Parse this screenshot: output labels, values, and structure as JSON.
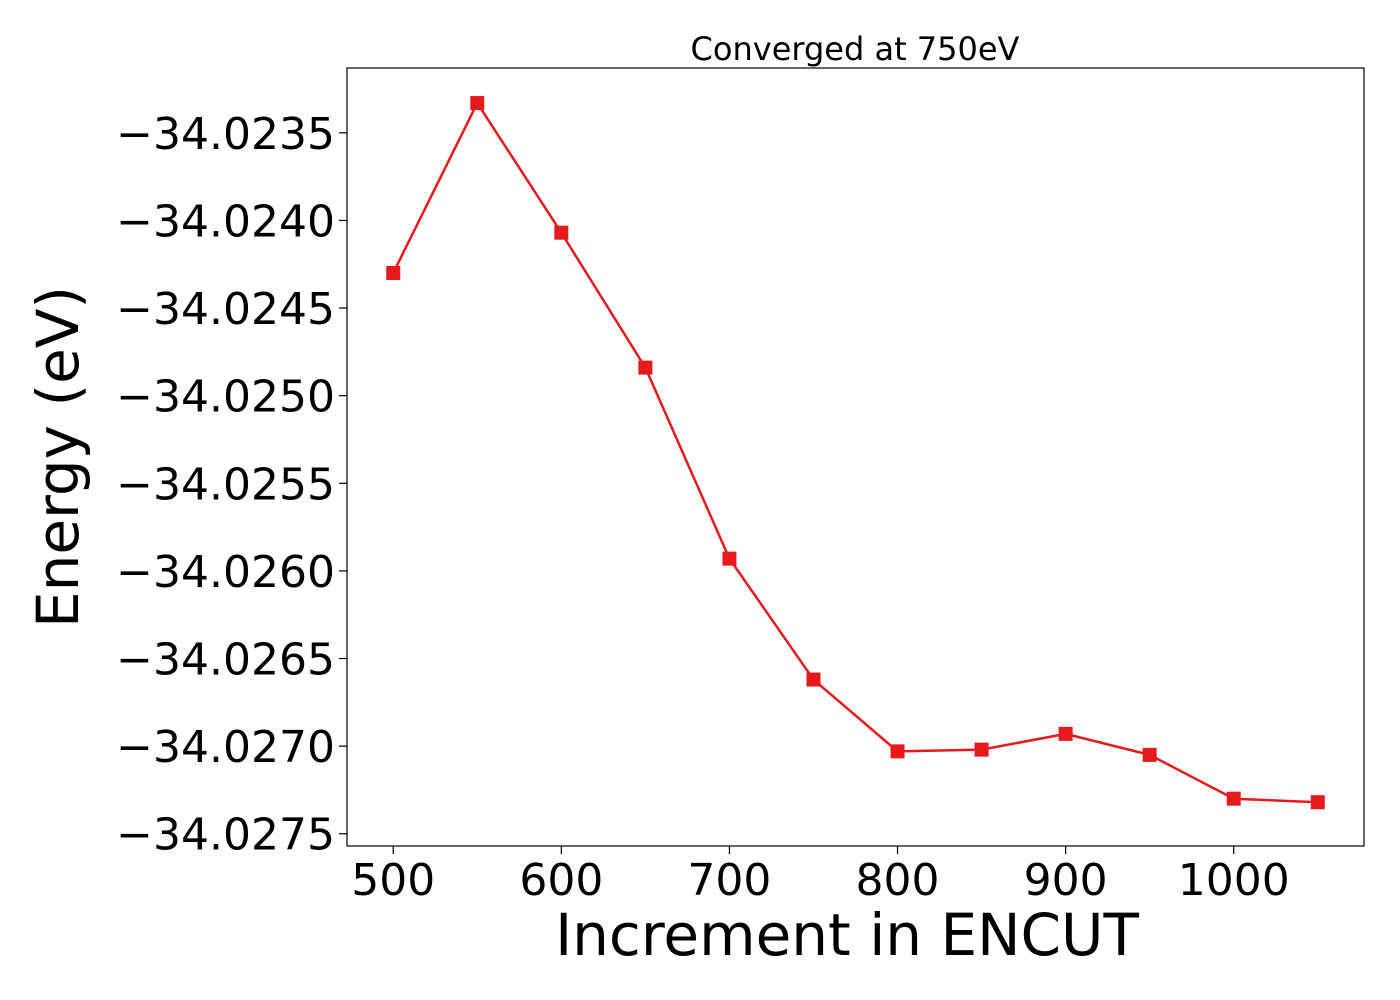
{
  "chart_data": {
    "type": "line",
    "title": "Converged at 750eV",
    "xlabel": "Increment in ENCUT",
    "ylabel": "Energy (eV)",
    "x": [
      500,
      550,
      600,
      650,
      700,
      750,
      800,
      850,
      900,
      950,
      1000,
      1050
    ],
    "series": [
      {
        "values": [
          -34.0243,
          -34.02333,
          -34.02407,
          -34.02484,
          -34.02593,
          -34.02662,
          -34.02703,
          -34.02702,
          -34.02693,
          -34.02705,
          -34.0273,
          -34.02732
        ],
        "color": "#e41a1c",
        "marker": "square"
      }
    ],
    "xlim": [
      472.5,
      1077.5
    ],
    "ylim": [
      -34.02757,
      -34.02313
    ],
    "xticks": [
      500,
      600,
      700,
      800,
      900,
      1000
    ],
    "xtick_labels": [
      "500",
      "600",
      "700",
      "800",
      "900",
      "1000"
    ],
    "yticks": [
      -34.0235,
      -34.024,
      -34.0245,
      -34.025,
      -34.0255,
      -34.026,
      -34.0265,
      -34.027,
      -34.0275
    ],
    "ytick_labels": [
      "−34.0235",
      "−34.0240",
      "−34.0245",
      "−34.0250",
      "−34.0255",
      "−34.0260",
      "−34.0265",
      "−34.0270",
      "−34.0275"
    ],
    "grid": false,
    "legend": false
  }
}
